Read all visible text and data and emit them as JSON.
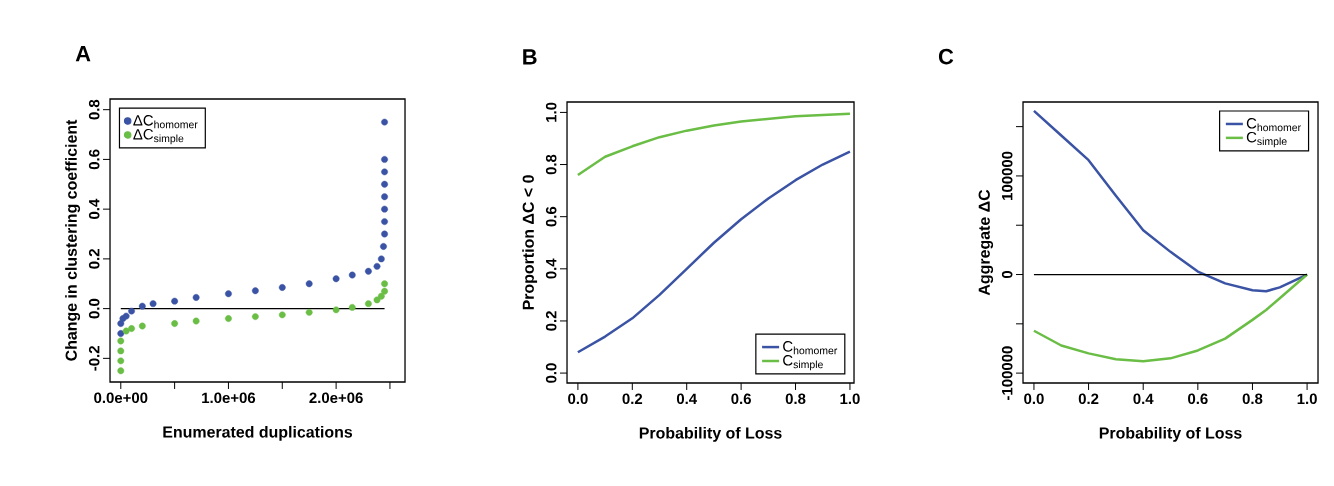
{
  "chart_data": [
    {
      "type": "scatter",
      "title": "A",
      "xlabel": "Enumerated duplications",
      "ylabel": "Change in clustering coefficient",
      "marker": "circle",
      "legend": "top left",
      "xlim": [
        -100000,
        2640000
      ],
      "ylim": [
        -0.295,
        0.843
      ],
      "xticks": [
        {
          "value": 0,
          "label": "0.0e+00"
        },
        {
          "value": 500000,
          "label": null
        },
        {
          "value": 1000000,
          "label": "1.0e+06"
        },
        {
          "value": 1500000,
          "label": null
        },
        {
          "value": 2000000,
          "label": "2.0e+06"
        },
        {
          "value": 2500000,
          "label": null
        }
      ],
      "yticks": [
        {
          "value": -0.2,
          "label": "-0.2"
        },
        {
          "value": 0,
          "label": "0.0"
        },
        {
          "value": 0.2,
          "label": "0.2"
        },
        {
          "value": 0.4,
          "label": "0.4"
        },
        {
          "value": 0.6,
          "label": "0.6"
        },
        {
          "value": 0.8,
          "label": "0.8"
        }
      ],
      "ref_lines": [
        {
          "axis": "y",
          "value": 0
        }
      ],
      "series": [
        {
          "name": "ΔC$_{homomer}$",
          "color": "#3a53a4",
          "x": [
            0,
            0,
            20000,
            50000,
            100000,
            200000,
            300000,
            500000,
            700000,
            1000000,
            1250000,
            1500000,
            1750000,
            2000000,
            2150000,
            2300000,
            2380000,
            2420000,
            2440000,
            2450000,
            2450000,
            2450000,
            2450000,
            2450000,
            2450000,
            2450000,
            2450000
          ],
          "values": [
            -0.1,
            -0.06,
            -0.04,
            -0.03,
            -0.01,
            0.01,
            0.02,
            0.03,
            0.045,
            0.06,
            0.072,
            0.085,
            0.1,
            0.12,
            0.135,
            0.15,
            0.17,
            0.2,
            0.25,
            0.3,
            0.35,
            0.4,
            0.45,
            0.5,
            0.55,
            0.6,
            0.75
          ]
        },
        {
          "name": "ΔC$_{simple}$",
          "color": "#6abd45",
          "x": [
            0,
            0,
            0,
            0,
            50000,
            100000,
            200000,
            500000,
            700000,
            1000000,
            1250000,
            1500000,
            1750000,
            2000000,
            2150000,
            2300000,
            2380000,
            2420000,
            2450000,
            2450000
          ],
          "values": [
            -0.25,
            -0.21,
            -0.17,
            -0.13,
            -0.09,
            -0.08,
            -0.07,
            -0.06,
            -0.05,
            -0.04,
            -0.032,
            -0.025,
            -0.015,
            -0.005,
            0.005,
            0.02,
            0.035,
            0.05,
            0.07,
            0.1
          ]
        }
      ]
    },
    {
      "type": "line",
      "title": "B",
      "xlabel": "Probability of Loss",
      "ylabel": "Proportion  ΔC < 0",
      "legend": "bottom right",
      "xlim": [
        -0.04,
        1.015
      ],
      "ylim": [
        -0.038,
        1.04
      ],
      "xticks": [
        {
          "value": 0,
          "label": "0.0"
        },
        {
          "value": 0.2,
          "label": "0.2"
        },
        {
          "value": 0.4,
          "label": "0.4"
        },
        {
          "value": 0.6,
          "label": "0.6"
        },
        {
          "value": 0.8,
          "label": "0.8"
        },
        {
          "value": 1,
          "label": "1.0"
        }
      ],
      "yticks": [
        {
          "value": 0,
          "label": "0.0"
        },
        {
          "value": 0.2,
          "label": "0.2"
        },
        {
          "value": 0.4,
          "label": "0.4"
        },
        {
          "value": 0.6,
          "label": "0.6"
        },
        {
          "value": 0.8,
          "label": "0.8"
        },
        {
          "value": 1,
          "label": "1.0"
        }
      ],
      "x": [
        0,
        0.1,
        0.2,
        0.3,
        0.4,
        0.5,
        0.6,
        0.7,
        0.8,
        0.9,
        1.0
      ],
      "series": [
        {
          "name": "C$_{homomer}$",
          "color": "#3a53a4",
          "values": [
            0.08,
            0.14,
            0.21,
            0.3,
            0.4,
            0.5,
            0.59,
            0.67,
            0.74,
            0.8,
            0.85
          ]
        },
        {
          "name": "C$_{simple}$",
          "color": "#6abd45",
          "values": [
            0.76,
            0.83,
            0.87,
            0.905,
            0.93,
            0.95,
            0.965,
            0.975,
            0.985,
            0.99,
            0.995
          ]
        }
      ]
    },
    {
      "type": "line",
      "title": "C",
      "xlabel": "Probability of Loss",
      "ylabel": "Aggregate  ΔC",
      "legend": "top right",
      "xlim": [
        -0.04,
        1.04
      ],
      "ylim": [
        -110000,
        175000
      ],
      "xticks": [
        {
          "value": 0,
          "label": "0.0"
        },
        {
          "value": 0.2,
          "label": "0.2"
        },
        {
          "value": 0.4,
          "label": "0.4"
        },
        {
          "value": 0.6,
          "label": "0.6"
        },
        {
          "value": 0.8,
          "label": "0.8"
        },
        {
          "value": 1,
          "label": "1.0"
        }
      ],
      "yticks": [
        -100000,
        {
          "value": -50000,
          "label": null
        },
        0,
        {
          "value": 50000,
          "label": null
        },
        100000,
        {
          "value": 150000,
          "label": null
        }
      ],
      "ref_lines": [
        {
          "axis": "y",
          "value": 0
        }
      ],
      "x": [
        0,
        0.1,
        0.2,
        0.3,
        0.4,
        0.5,
        0.6,
        0.7,
        0.8,
        0.85,
        0.9,
        1.0
      ],
      "series": [
        {
          "name": "C$_{homomer}$",
          "color": "#3a53a4",
          "values": [
            166000,
            141000,
            116000,
            80000,
            45000,
            23000,
            3000,
            -9000,
            -16000,
            -17000,
            -13000,
            0
          ]
        },
        {
          "name": "C$_{simple}$",
          "color": "#6abd45",
          "values": [
            -57000,
            -72000,
            -80000,
            -86000,
            -88000,
            -85000,
            -77000,
            -65000,
            -46000,
            -36000,
            -24000,
            0
          ]
        }
      ]
    }
  ]
}
